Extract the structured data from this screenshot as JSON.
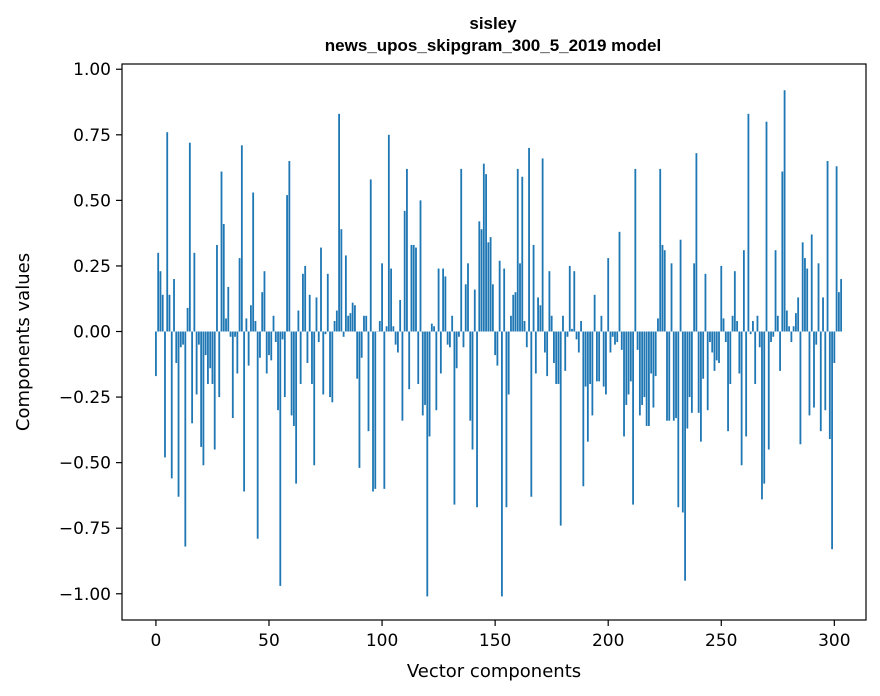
{
  "chart_data": {
    "type": "bar",
    "title": [
      "sisley",
      "news_upos_skipgram_300_5_2019 model"
    ],
    "xlabel": "Vector components",
    "ylabel": "Components values",
    "xlim": [
      -15,
      314
    ],
    "ylim": [
      -1.1,
      1.02
    ],
    "xticks": [
      0,
      50,
      100,
      150,
      200,
      250,
      300
    ],
    "xtick_labels": [
      "0",
      "50",
      "100",
      "150",
      "200",
      "250",
      "300"
    ],
    "yticks": [
      1.0,
      0.75,
      0.5,
      0.25,
      0.0,
      -0.25,
      -0.5,
      -0.75,
      -1.0
    ],
    "ytick_labels": [
      "1.00",
      "0.75",
      "0.50",
      "0.25",
      "0.00",
      "−0.25",
      "−0.50",
      "−0.75",
      "−1.00"
    ],
    "color": "#1f77b4",
    "values": [
      -0.17,
      0.3,
      0.23,
      0.14,
      -0.48,
      0.76,
      0.14,
      -0.56,
      0.2,
      -0.12,
      -0.63,
      -0.06,
      -0.05,
      -0.82,
      0.09,
      0.72,
      -0.35,
      0.3,
      -0.24,
      -0.05,
      -0.44,
      -0.51,
      -0.09,
      -0.2,
      -0.14,
      -0.2,
      -0.45,
      0.33,
      -0.25,
      0.61,
      0.41,
      0.05,
      0.17,
      -0.02,
      -0.33,
      -0.02,
      -0.16,
      0.28,
      0.71,
      -0.61,
      0.05,
      -0.13,
      0.1,
      0.53,
      0.04,
      -0.79,
      -0.1,
      0.15,
      0.23,
      -0.16,
      -0.09,
      -0.11,
      0.06,
      -0.04,
      -0.3,
      -0.97,
      -0.03,
      -0.25,
      0.52,
      0.65,
      -0.32,
      -0.36,
      -0.58,
      0.08,
      -0.2,
      0.22,
      0.25,
      -0.12,
      0.14,
      -0.2,
      -0.51,
      0.13,
      -0.04,
      0.32,
      -0.24,
      -0.01,
      0.22,
      -0.25,
      -0.27,
      0.04,
      0.08,
      0.83,
      0.39,
      -0.02,
      0.29,
      0.06,
      0.07,
      0.11,
      0.1,
      -0.18,
      -0.52,
      -0.1,
      0.06,
      0.06,
      -0.38,
      0.58,
      -0.61,
      -0.6,
      0.0,
      0.04,
      0.26,
      -0.6,
      0.02,
      0.75,
      0.24,
      0.02,
      -0.05,
      -0.08,
      0.12,
      -0.34,
      0.46,
      0.62,
      -0.22,
      0.33,
      0.33,
      0.32,
      -0.2,
      0.5,
      -0.32,
      -0.28,
      -1.01,
      -0.4,
      0.03,
      0.02,
      -0.3,
      0.24,
      -0.16,
      0.24,
      0.21,
      -0.05,
      -0.06,
      0.06,
      -0.66,
      -0.14,
      -0.02,
      0.62,
      -0.06,
      0.18,
      0.26,
      -0.34,
      -0.45,
      0.16,
      -0.67,
      0.42,
      0.39,
      0.64,
      0.6,
      0.34,
      0.36,
      0.18,
      -0.09,
      -0.13,
      0.27,
      -1.01,
      0.24,
      -0.67,
      -0.24,
      0.06,
      0.14,
      0.15,
      0.62,
      0.26,
      0.59,
      0.04,
      -0.06,
      0.7,
      -0.63,
      0.33,
      -0.16,
      0.13,
      0.1,
      0.66,
      -0.08,
      -0.17,
      0.23,
      0.06,
      -0.12,
      -0.2,
      -0.2,
      -0.74,
      0.06,
      -0.15,
      -0.02,
      0.25,
      0.01,
      0.23,
      -0.03,
      -0.08,
      0.04,
      -0.59,
      -0.21,
      -0.42,
      -0.2,
      -0.32,
      0.14,
      -0.19,
      -0.19,
      0.06,
      -0.21,
      -0.24,
      0.28,
      -0.08,
      -0.02,
      -0.05,
      -0.04,
      0.38,
      -0.07,
      -0.4,
      -0.28,
      -0.24,
      -0.19,
      -0.66,
      0.62,
      -0.07,
      -0.32,
      -0.28,
      -0.25,
      -0.36,
      -0.36,
      -0.16,
      -0.29,
      -0.17,
      0.05,
      0.62,
      0.33,
      0.31,
      -0.34,
      -0.34,
      0.26,
      -0.34,
      -0.33,
      -0.67,
      0.35,
      -0.69,
      -0.95,
      -0.37,
      -0.25,
      -0.31,
      0.26,
      0.68,
      -0.31,
      -0.42,
      -0.18,
      0.22,
      -0.3,
      -0.04,
      -0.08,
      -0.15,
      -0.11,
      -0.12,
      0.25,
      0.05,
      -0.04,
      -0.38,
      -0.2,
      0.06,
      0.23,
      0.04,
      -0.16,
      -0.51,
      0.31,
      -0.4,
      0.83,
      -0.01,
      0.04,
      -0.2,
      0.06,
      -0.06,
      -0.64,
      -0.58,
      0.8,
      -0.45,
      -0.04,
      -0.02,
      0.31,
      0.06,
      -0.15,
      0.61,
      0.92,
      0.08,
      0.02,
      -0.04,
      0.02,
      0.07,
      0.13,
      -0.43,
      0.34,
      0.28,
      0.24,
      -0.32,
      0.37,
      -0.29,
      -0.05,
      0.26,
      -0.38,
      0.13,
      -0.3,
      0.65,
      -0.41,
      -0.83,
      -0.12,
      0.63,
      0.15,
      0.2
    ]
  }
}
